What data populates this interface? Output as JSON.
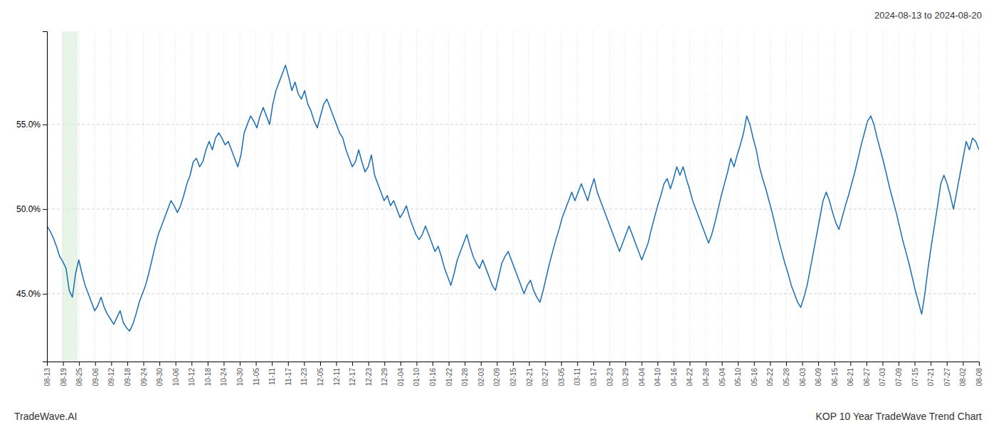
{
  "chart_data": {
    "type": "line",
    "title": "2024-08-13 to 2024-08-20",
    "annotations": [
      "TradeWave.AI",
      "KOP 10 Year TradeWave Trend Chart"
    ],
    "color": "#1a6db5",
    "grid": true,
    "xlim": [
      0,
      293
    ],
    "xticks": [
      {
        "value": 0,
        "label": "08-13"
      },
      {
        "value": 5.0517,
        "label": "08-19"
      },
      {
        "value": 10.1034,
        "label": "08-25"
      },
      {
        "value": 15.1552,
        "label": "09-06"
      },
      {
        "value": 20.2069,
        "label": "09-12"
      },
      {
        "value": 25.2586,
        "label": "09-18"
      },
      {
        "value": 30.3103,
        "label": "09-24"
      },
      {
        "value": 35.3621,
        "label": "09-30"
      },
      {
        "value": 40.4138,
        "label": "10-06"
      },
      {
        "value": 45.4655,
        "label": "10-12"
      },
      {
        "value": 50.5172,
        "label": "10-18"
      },
      {
        "value": 55.569,
        "label": "10-24"
      },
      {
        "value": 60.6207,
        "label": "10-30"
      },
      {
        "value": 65.6724,
        "label": "11-05"
      },
      {
        "value": 70.7241,
        "label": "11-11"
      },
      {
        "value": 75.7759,
        "label": "11-17"
      },
      {
        "value": 80.8276,
        "label": "11-23"
      },
      {
        "value": 85.8793,
        "label": "12-05"
      },
      {
        "value": 90.931,
        "label": "12-11"
      },
      {
        "value": 95.9828,
        "label": "12-17"
      },
      {
        "value": 101.0345,
        "label": "12-23"
      },
      {
        "value": 106.0862,
        "label": "12-29"
      },
      {
        "value": 111.1379,
        "label": "01-04"
      },
      {
        "value": 116.1897,
        "label": "01-10"
      },
      {
        "value": 121.2414,
        "label": "01-16"
      },
      {
        "value": 126.2931,
        "label": "01-22"
      },
      {
        "value": 131.3448,
        "label": "01-28"
      },
      {
        "value": 136.3966,
        "label": "02-03"
      },
      {
        "value": 141.4483,
        "label": "02-09"
      },
      {
        "value": 146.5,
        "label": "02-15"
      },
      {
        "value": 151.5517,
        "label": "02-21"
      },
      {
        "value": 156.6034,
        "label": "02-27"
      },
      {
        "value": 161.6552,
        "label": "03-05"
      },
      {
        "value": 166.7069,
        "label": "03-11"
      },
      {
        "value": 171.7586,
        "label": "03-17"
      },
      {
        "value": 176.8103,
        "label": "03-23"
      },
      {
        "value": 181.8621,
        "label": "03-29"
      },
      {
        "value": 186.9138,
        "label": "04-04"
      },
      {
        "value": 191.9655,
        "label": "04-10"
      },
      {
        "value": 197.0172,
        "label": "04-16"
      },
      {
        "value": 202.069,
        "label": "04-22"
      },
      {
        "value": 207.1207,
        "label": "04-28"
      },
      {
        "value": 212.1724,
        "label": "05-04"
      },
      {
        "value": 217.2241,
        "label": "05-10"
      },
      {
        "value": 222.2759,
        "label": "05-16"
      },
      {
        "value": 227.3276,
        "label": "05-22"
      },
      {
        "value": 232.3793,
        "label": "05-28"
      },
      {
        "value": 237.431,
        "label": "06-03"
      },
      {
        "value": 242.4828,
        "label": "06-09"
      },
      {
        "value": 247.5345,
        "label": "06-15"
      },
      {
        "value": 252.5862,
        "label": "06-21"
      },
      {
        "value": 257.6379,
        "label": "06-27"
      },
      {
        "value": 262.6897,
        "label": "07-03"
      },
      {
        "value": 267.7414,
        "label": "07-09"
      },
      {
        "value": 272.7931,
        "label": "07-15"
      },
      {
        "value": 277.8448,
        "label": "07-21"
      },
      {
        "value": 282.8966,
        "label": "07-27"
      },
      {
        "value": 287.9483,
        "label": "08-02"
      },
      {
        "value": 293,
        "label": "08-08"
      }
    ],
    "ylim": [
      41.0,
      60.5
    ],
    "yticks": [
      {
        "value": 45.0,
        "label": "45.0%"
      },
      {
        "value": 50.0,
        "label": "50.0%"
      },
      {
        "value": 55.0,
        "label": "55.0%"
      }
    ],
    "shaded_x": [
      4.688,
      9.669
    ],
    "values": [
      49.0,
      48.7,
      48.3,
      47.8,
      47.2,
      46.9,
      46.5,
      45.2,
      44.8,
      46.2,
      47.0,
      46.2,
      45.5,
      45.0,
      44.5,
      44.0,
      44.3,
      44.8,
      44.2,
      43.8,
      43.5,
      43.2,
      43.6,
      44.0,
      43.3,
      43.0,
      42.8,
      43.2,
      43.8,
      44.5,
      45.0,
      45.5,
      46.2,
      47.0,
      47.8,
      48.5,
      49.0,
      49.5,
      50.0,
      50.5,
      50.2,
      49.8,
      50.2,
      50.8,
      51.5,
      52.0,
      52.8,
      53.0,
      52.5,
      52.8,
      53.5,
      54.0,
      53.5,
      54.2,
      54.5,
      54.2,
      53.8,
      54.0,
      53.5,
      53.0,
      52.5,
      53.2,
      54.5,
      55.0,
      55.5,
      55.2,
      54.8,
      55.5,
      56.0,
      55.5,
      55.0,
      56.2,
      57.0,
      57.5,
      58.0,
      58.5,
      57.8,
      57.0,
      57.5,
      56.8,
      56.5,
      57.0,
      56.2,
      55.8,
      55.2,
      54.8,
      55.5,
      56.2,
      56.5,
      56.0,
      55.5,
      55.0,
      54.5,
      54.2,
      53.5,
      53.0,
      52.5,
      52.8,
      53.5,
      52.8,
      52.2,
      52.5,
      53.2,
      52.0,
      51.5,
      51.0,
      50.5,
      50.8,
      50.2,
      50.5,
      50.0,
      49.5,
      49.8,
      50.2,
      49.5,
      49.0,
      48.5,
      48.2,
      48.5,
      49.0,
      48.5,
      48.0,
      47.5,
      47.8,
      47.2,
      46.5,
      46.0,
      45.5,
      46.2,
      47.0,
      47.5,
      48.0,
      48.5,
      47.8,
      47.2,
      46.8,
      46.5,
      47.0,
      46.5,
      46.0,
      45.5,
      45.2,
      46.0,
      46.8,
      47.2,
      47.5,
      47.0,
      46.5,
      46.0,
      45.5,
      45.0,
      45.5,
      45.8,
      45.2,
      44.8,
      44.5,
      45.2,
      46.0,
      46.8,
      47.5,
      48.2,
      48.8,
      49.5,
      50.0,
      50.5,
      51.0,
      50.5,
      51.0,
      51.5,
      51.0,
      50.5,
      51.2,
      51.8,
      51.0,
      50.5,
      50.0,
      49.5,
      49.0,
      48.5,
      48.0,
      47.5,
      48.0,
      48.5,
      49.0,
      48.5,
      48.0,
      47.5,
      47.0,
      47.5,
      48.0,
      48.8,
      49.5,
      50.2,
      50.8,
      51.5,
      51.8,
      51.2,
      51.8,
      52.5,
      52.0,
      52.5,
      51.8,
      51.2,
      50.5,
      50.0,
      49.5,
      49.0,
      48.5,
      48.0,
      48.5,
      49.2,
      50.0,
      50.8,
      51.5,
      52.2,
      53.0,
      52.5,
      53.2,
      53.8,
      54.5,
      55.5,
      55.0,
      54.2,
      53.5,
      52.5,
      51.8,
      51.2,
      50.5,
      49.8,
      49.0,
      48.2,
      47.5,
      46.8,
      46.2,
      45.5,
      45.0,
      44.5,
      44.2,
      44.8,
      45.5,
      46.5,
      47.5,
      48.5,
      49.5,
      50.5,
      51.0,
      50.5,
      49.8,
      49.2,
      48.8,
      49.5,
      50.2,
      50.8,
      51.5,
      52.2,
      53.0,
      53.8,
      54.5,
      55.2,
      55.5,
      55.0,
      54.2,
      53.5,
      52.8,
      52.0,
      51.2,
      50.5,
      49.8,
      49.0,
      48.2,
      47.5,
      46.8,
      46.0,
      45.2,
      44.5,
      43.8,
      45.0,
      46.5,
      47.8,
      49.0,
      50.2,
      51.5,
      52.0,
      51.5,
      50.8,
      50.0,
      51.0,
      52.0,
      53.0,
      54.0,
      53.5,
      54.2,
      54.0,
      53.5
    ]
  }
}
